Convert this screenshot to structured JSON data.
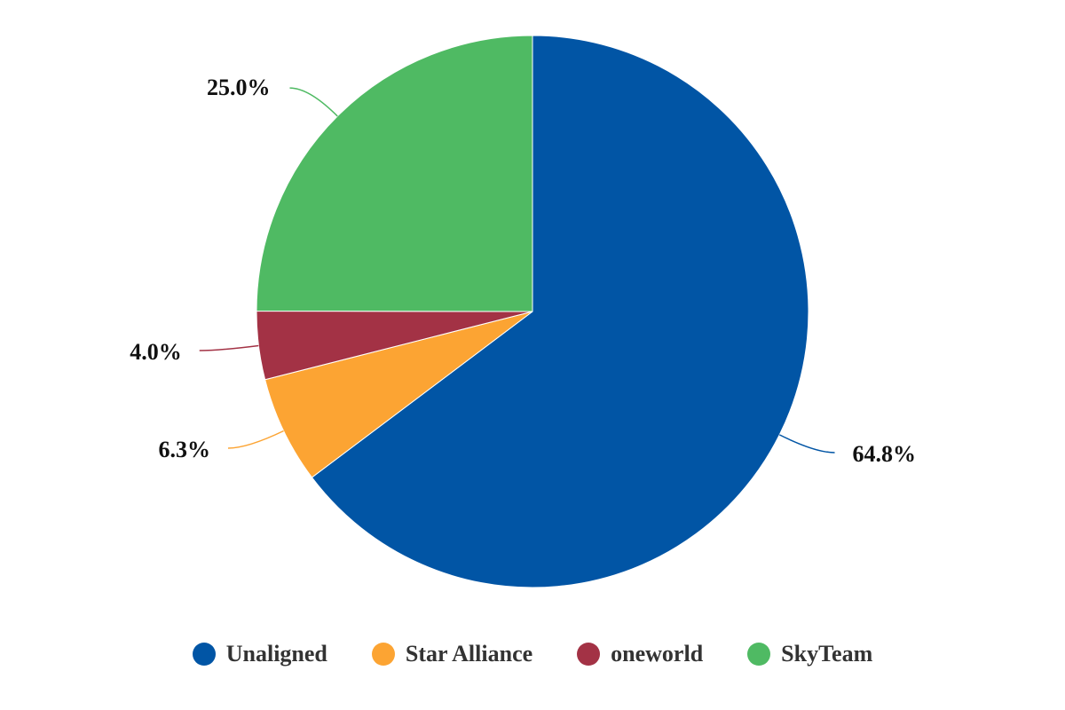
{
  "chart_data": {
    "type": "pie",
    "title": "",
    "legend_position": "bottom",
    "slices": [
      {
        "name": "Unaligned",
        "value": 64.8,
        "label": "64.8%",
        "color": "#0155a5"
      },
      {
        "name": "Star Alliance",
        "value": 6.3,
        "label": "6.3%",
        "color": "#fca433"
      },
      {
        "name": "oneworld",
        "value": 4.0,
        "label": "4.0%",
        "color": "#a33245"
      },
      {
        "name": "SkyTeam",
        "value": 25.0,
        "label": "25.0%",
        "color": "#4fba63"
      }
    ]
  }
}
